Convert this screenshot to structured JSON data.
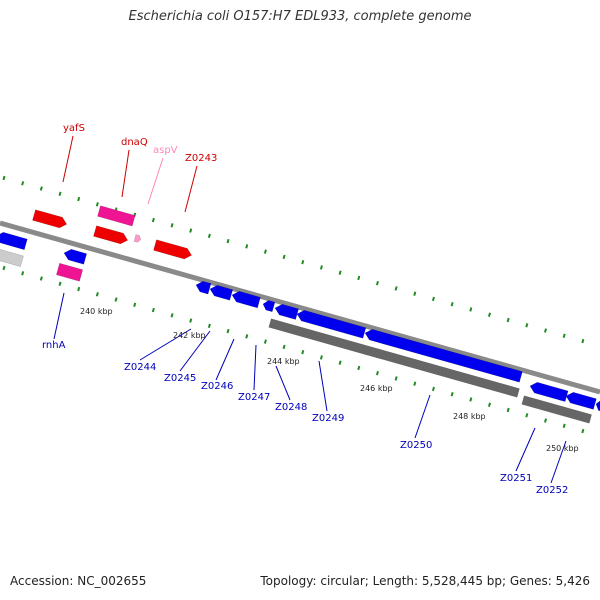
{
  "title": "Escherichia coli O157:H7 EDL933, complete genome",
  "footer": {
    "accession": "Accession: NC_002655",
    "topology": "Topology: circular; Length: 5,528,445 bp; Genes: 5,426"
  },
  "colors": {
    "forward_gene": "#ee0000",
    "reverse_gene": "#0000ee",
    "rna_gene": "#ee1493",
    "trna_gene": "#ff99cc",
    "pseudo_gene": "#666666",
    "backbone": "#8a8a8a",
    "tick": "#228b22"
  },
  "kbp_labels": [
    "240 kbp",
    "242 kbp",
    "244 kbp",
    "246 kbp",
    "248 kbp",
    "250 kbp"
  ],
  "gene_labels": [
    {
      "name": "yafS",
      "color": "#cc0000"
    },
    {
      "name": "dnaQ",
      "color": "#cc0000"
    },
    {
      "name": "aspV",
      "color": "#ff88bb"
    },
    {
      "name": "Z0243",
      "color": "#cc0000"
    },
    {
      "name": "rnhA",
      "color": "#0000bb"
    },
    {
      "name": "Z0244",
      "color": "#0000bb"
    },
    {
      "name": "Z0245",
      "color": "#0000bb"
    },
    {
      "name": "Z0246",
      "color": "#0000bb"
    },
    {
      "name": "Z0247",
      "color": "#0000bb"
    },
    {
      "name": "Z0248",
      "color": "#0000bb"
    },
    {
      "name": "Z0249",
      "color": "#0000bb"
    },
    {
      "name": "Z0250",
      "color": "#0000bb"
    },
    {
      "name": "Z0251",
      "color": "#0000bb"
    },
    {
      "name": "Z0252",
      "color": "#0000bb"
    }
  ]
}
